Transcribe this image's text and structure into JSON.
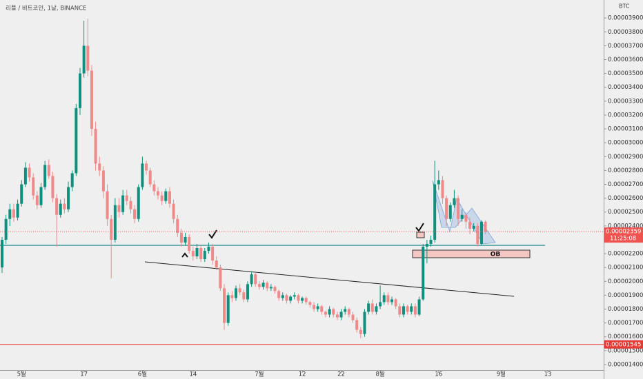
{
  "chart_data": {
    "type": "candlestick",
    "title": "리플 / 비트코인, 1날, BINANCE",
    "unit": "BTC",
    "up_color": "#0f8f7e",
    "down_color": "#ee8a8a",
    "xlim": [
      -0.53,
      154.33
    ],
    "ylim": [
      1.36e-05,
      4.03e-05
    ],
    "xticks": [
      {
        "value": 5,
        "label": "5월"
      },
      {
        "value": 21,
        "label": "17"
      },
      {
        "value": 36,
        "label": "6월"
      },
      {
        "value": 49,
        "label": "14"
      },
      {
        "value": 66,
        "label": "7월"
      },
      {
        "value": 77,
        "label": "12"
      },
      {
        "value": 87,
        "label": "22"
      },
      {
        "value": 97,
        "label": "8월"
      },
      {
        "value": 112,
        "label": "16"
      },
      {
        "value": 128,
        "label": "9월"
      },
      {
        "value": 140,
        "label": "13"
      }
    ],
    "yticks": [
      {
        "value": 1.4e-05,
        "label": "0.00001400"
      },
      {
        "value": 1.5e-05,
        "label": "0.00001500"
      },
      {
        "value": 1.6e-05,
        "label": "0.00001600"
      },
      {
        "value": 1.7e-05,
        "label": "0.00001700"
      },
      {
        "value": 1.8e-05,
        "label": "0.00001800"
      },
      {
        "value": 1.9e-05,
        "label": "0.00001900"
      },
      {
        "value": 2e-05,
        "label": "0.00002000"
      },
      {
        "value": 2.1e-05,
        "label": "0.00002100"
      },
      {
        "value": 2.2e-05,
        "label": "0.00002200"
      },
      {
        "value": 2.3e-05,
        "label": "0.00002300"
      },
      {
        "value": 2.4e-05,
        "label": "0.00002400"
      },
      {
        "value": 2.5e-05,
        "label": "0.00002500"
      },
      {
        "value": 2.6e-05,
        "label": "0.00002600"
      },
      {
        "value": 2.7e-05,
        "label": "0.00002700"
      },
      {
        "value": 2.8e-05,
        "label": "0.00002800"
      },
      {
        "value": 2.9e-05,
        "label": "0.00002900"
      },
      {
        "value": 3e-05,
        "label": "0.00003000"
      },
      {
        "value": 3.1e-05,
        "label": "0.00003100"
      },
      {
        "value": 3.2e-05,
        "label": "0.00003200"
      },
      {
        "value": 3.3e-05,
        "label": "0.00003300"
      },
      {
        "value": 3.4e-05,
        "label": "0.00003400"
      },
      {
        "value": 3.5e-05,
        "label": "0.00003500"
      },
      {
        "value": 3.6e-05,
        "label": "0.00003600"
      },
      {
        "value": 3.7e-05,
        "label": "0.00003700"
      },
      {
        "value": 3.8e-05,
        "label": "0.00003800"
      },
      {
        "value": 3.9e-05,
        "label": "0.00003900"
      }
    ],
    "level": 2.26e-05,
    "support_level": 1.545e-05,
    "last_price": 2.359e-05,
    "countdown": "11:25:08",
    "ob_label": "OB",
    "ohlc": [
      [
        2.1e-05,
        2.32e-05,
        2.06e-05,
        2.3e-05
      ],
      [
        2.3e-05,
        2.48e-05,
        2.27e-05,
        2.45e-05
      ],
      [
        2.45e-05,
        2.56e-05,
        2.4e-05,
        2.52e-05
      ],
      [
        2.52e-05,
        2.56e-05,
        2.43e-05,
        2.46e-05
      ],
      [
        2.46e-05,
        2.59e-05,
        2.44e-05,
        2.56e-05
      ],
      [
        2.56e-05,
        2.73e-05,
        2.54e-05,
        2.7e-05
      ],
      [
        2.7e-05,
        2.86e-05,
        2.68e-05,
        2.82e-05
      ],
      [
        2.82e-05,
        2.85e-05,
        2.72e-05,
        2.75e-05
      ],
      [
        2.75e-05,
        2.78e-05,
        2.59e-05,
        2.62e-05
      ],
      [
        2.62e-05,
        2.65e-05,
        2.52e-05,
        2.55e-05
      ],
      [
        2.55e-05,
        2.71e-05,
        2.53e-05,
        2.68e-05
      ],
      [
        2.68e-05,
        2.87e-05,
        2.66e-05,
        2.84e-05
      ],
      [
        2.84e-05,
        2.88e-05,
        2.74e-05,
        2.76e-05
      ],
      [
        2.76e-05,
        2.79e-05,
        2.57e-05,
        2.6e-05
      ],
      [
        2.6e-05,
        2.63e-05,
        2.25e-05,
        2.48e-05
      ],
      [
        2.48e-05,
        2.59e-05,
        2.46e-05,
        2.56e-05
      ],
      [
        2.56e-05,
        2.6e-05,
        2.49e-05,
        2.52e-05
      ],
      [
        2.52e-05,
        2.72e-05,
        2.5e-05,
        2.68e-05
      ],
      [
        2.68e-05,
        2.8e-05,
        2.65e-05,
        2.78e-05
      ],
      [
        2.78e-05,
        3.28e-05,
        2.76e-05,
        3.25e-05
      ],
      [
        3.25e-05,
        3.54e-05,
        3.2e-05,
        3.5e-05
      ],
      [
        3.5e-05,
        3.88e-05,
        3.47e-05,
        3.7e-05
      ],
      [
        3.7e-05,
        3.895e-05,
        3.48e-05,
        3.52e-05
      ],
      [
        3.52e-05,
        3.56e-05,
        3.05e-05,
        3.1e-05
      ],
      [
        3.1e-05,
        3.15e-05,
        2.8e-05,
        2.85e-05
      ],
      [
        2.85e-05,
        2.9e-05,
        2.76e-05,
        2.8e-05
      ],
      [
        2.8e-05,
        2.83e-05,
        2.6e-05,
        2.65e-05
      ],
      [
        2.65e-05,
        2.7e-05,
        2.4e-05,
        2.45e-05
      ],
      [
        2.45e-05,
        2.48e-05,
        2.02e-05,
        2.3e-05
      ],
      [
        2.3e-05,
        2.6e-05,
        2.28e-05,
        2.55e-05
      ],
      [
        2.55e-05,
        2.6e-05,
        2.46e-05,
        2.5e-05
      ],
      [
        2.5e-05,
        2.66e-05,
        2.48e-05,
        2.62e-05
      ],
      [
        2.62e-05,
        2.66e-05,
        2.55e-05,
        2.58e-05
      ],
      [
        2.58e-05,
        2.61e-05,
        2.49e-05,
        2.52e-05
      ],
      [
        2.52e-05,
        2.55e-05,
        2.42e-05,
        2.45e-05
      ],
      [
        2.45e-05,
        2.7e-05,
        2.43e-05,
        2.68e-05
      ],
      [
        2.68e-05,
        2.9e-05,
        2.66e-05,
        2.85e-05
      ],
      [
        2.85e-05,
        2.87e-05,
        2.77e-05,
        2.8e-05
      ],
      [
        2.8e-05,
        2.82e-05,
        2.68e-05,
        2.7e-05
      ],
      [
        2.7e-05,
        2.73e-05,
        2.62e-05,
        2.65e-05
      ],
      [
        2.65e-05,
        2.68e-05,
        2.59e-05,
        2.62e-05
      ],
      [
        2.62e-05,
        2.65e-05,
        2.55e-05,
        2.58e-05
      ],
      [
        2.58e-05,
        2.67e-05,
        2.56e-05,
        2.65e-05
      ],
      [
        2.65e-05,
        2.68e-05,
        2.53e-05,
        2.56e-05
      ],
      [
        2.56e-05,
        2.59e-05,
        2.42e-05,
        2.45e-05
      ],
      [
        2.45e-05,
        2.48e-05,
        2.32e-05,
        2.35e-05
      ],
      [
        2.35e-05,
        2.38e-05,
        2.25e-05,
        2.28e-05
      ],
      [
        2.28e-05,
        2.35e-05,
        2.26e-05,
        2.32e-05
      ],
      [
        2.32e-05,
        2.34e-05,
        2.2e-05,
        2.22e-05
      ],
      [
        2.22e-05,
        2.25e-05,
        2.15e-05,
        2.18e-05
      ],
      [
        2.18e-05,
        2.27e-05,
        2.16e-05,
        2.24e-05
      ],
      [
        2.24e-05,
        2.26e-05,
        2.14e-05,
        2.16e-05
      ],
      [
        2.16e-05,
        2.24e-05,
        2.14e-05,
        2.22e-05
      ],
      [
        2.22e-05,
        2.28e-05,
        2.2e-05,
        2.25e-05
      ],
      [
        2.25e-05,
        2.27e-05,
        2.12e-05,
        2.15e-05
      ],
      [
        2.15e-05,
        2.18e-05,
        2.08e-05,
        2.1e-05
      ],
      [
        2.1e-05,
        2.12e-05,
        1.93e-05,
        1.95e-05
      ],
      [
        1.95e-05,
        1.98e-05,
        1.65e-05,
        1.7e-05
      ],
      [
        1.7e-05,
        1.92e-05,
        1.68e-05,
        1.9e-05
      ],
      [
        1.9e-05,
        1.93e-05,
        1.85e-05,
        1.88e-05
      ],
      [
        1.88e-05,
        1.97e-05,
        1.86e-05,
        1.95e-05
      ],
      [
        1.95e-05,
        1.98e-05,
        1.9e-05,
        1.92e-05
      ],
      [
        1.92e-05,
        1.94e-05,
        1.85e-05,
        1.87e-05
      ],
      [
        1.87e-05,
        2e-05,
        1.85e-05,
        1.98e-05
      ],
      [
        1.98e-05,
        2.07e-05,
        1.96e-05,
        2.05e-05
      ],
      [
        2.05e-05,
        2.06e-05,
        1.96e-05,
        1.98e-05
      ],
      [
        1.98e-05,
        2e-05,
        1.94e-05,
        1.96e-05
      ],
      [
        1.96e-05,
        2.01e-05,
        1.94e-05,
        1.99e-05
      ],
      [
        1.99e-05,
        2e-05,
        1.93e-05,
        1.95e-05
      ],
      [
        1.95e-05,
        1.98e-05,
        1.93e-05,
        1.96e-05
      ],
      [
        1.96e-05,
        1.97e-05,
        1.91e-05,
        1.93e-05
      ],
      [
        1.93e-05,
        1.94e-05,
        1.86e-05,
        1.88e-05
      ],
      [
        1.88e-05,
        1.92e-05,
        1.86e-05,
        1.9e-05
      ],
      [
        1.9e-05,
        1.91e-05,
        1.84e-05,
        1.86e-05
      ],
      [
        1.86e-05,
        1.9e-05,
        1.84e-05,
        1.89e-05
      ],
      [
        1.89e-05,
        1.92e-05,
        1.87e-05,
        1.9e-05
      ],
      [
        1.9e-05,
        1.91e-05,
        1.84e-05,
        1.86e-05
      ],
      [
        1.86e-05,
        1.89e-05,
        1.84e-05,
        1.88e-05
      ],
      [
        1.88e-05,
        1.89e-05,
        1.83e-05,
        1.85e-05
      ],
      [
        1.85e-05,
        1.86e-05,
        1.81e-05,
        1.83e-05
      ],
      [
        1.83e-05,
        1.85e-05,
        1.78e-05,
        1.8e-05
      ],
      [
        1.8e-05,
        1.84e-05,
        1.78e-05,
        1.82e-05
      ],
      [
        1.82e-05,
        1.83e-05,
        1.76e-05,
        1.78e-05
      ],
      [
        1.78e-05,
        1.79e-05,
        1.74e-05,
        1.76e-05
      ],
      [
        1.76e-05,
        1.82e-05,
        1.74e-05,
        1.8e-05
      ],
      [
        1.8e-05,
        1.81e-05,
        1.74e-05,
        1.76e-05
      ],
      [
        1.76e-05,
        1.78e-05,
        1.72e-05,
        1.74e-05
      ],
      [
        1.74e-05,
        1.8e-05,
        1.72e-05,
        1.78e-05
      ],
      [
        1.78e-05,
        1.82e-05,
        1.76e-05,
        1.8e-05
      ],
      [
        1.8e-05,
        1.81e-05,
        1.74e-05,
        1.76e-05
      ],
      [
        1.76e-05,
        1.78e-05,
        1.7e-05,
        1.72e-05
      ],
      [
        1.72e-05,
        1.74e-05,
        1.63e-05,
        1.65e-05
      ],
      [
        1.65e-05,
        1.67e-05,
        1.59e-05,
        1.62e-05
      ],
      [
        1.62e-05,
        1.8e-05,
        1.6e-05,
        1.78e-05
      ],
      [
        1.78e-05,
        1.86e-05,
        1.76e-05,
        1.84e-05
      ],
      [
        1.84e-05,
        1.87e-05,
        1.76e-05,
        1.78e-05
      ],
      [
        1.78e-05,
        1.84e-05,
        1.76e-05,
        1.82e-05
      ],
      [
        1.82e-05,
        1.97e-05,
        1.8e-05,
        1.85e-05
      ],
      [
        1.85e-05,
        1.92e-05,
        1.83e-05,
        1.9e-05
      ],
      [
        1.9e-05,
        1.92e-05,
        1.83e-05,
        1.85e-05
      ],
      [
        1.85e-05,
        1.89e-05,
        1.83e-05,
        1.87e-05
      ],
      [
        1.87e-05,
        1.88e-05,
        1.8e-05,
        1.82e-05
      ],
      [
        1.82e-05,
        1.84e-05,
        1.74e-05,
        1.76e-05
      ],
      [
        1.76e-05,
        1.84e-05,
        1.74e-05,
        1.82e-05
      ],
      [
        1.82e-05,
        1.83e-05,
        1.76e-05,
        1.78e-05
      ],
      [
        1.78e-05,
        1.84e-05,
        1.76e-05,
        1.82e-05
      ],
      [
        1.82e-05,
        1.84e-05,
        1.74e-05,
        1.76e-05
      ],
      [
        1.76e-05,
        1.89e-05,
        1.75e-05,
        1.87e-05
      ],
      [
        1.87e-05,
        2.27e-05,
        1.86e-05,
        2.25e-05
      ],
      [
        2.25e-05,
        2.3e-05,
        2.13e-05,
        2.27e-05
      ],
      [
        2.27e-05,
        2.33e-05,
        2.25e-05,
        2.3e-05
      ],
      [
        2.3e-05,
        2.87e-05,
        2.28e-05,
        2.7e-05
      ],
      [
        2.7e-05,
        2.8e-05,
        2.66e-05,
        2.73e-05
      ],
      [
        2.73e-05,
        2.76e-05,
        2.56e-05,
        2.6e-05
      ],
      [
        2.6e-05,
        2.62e-05,
        2.4e-05,
        2.45e-05
      ],
      [
        2.45e-05,
        2.57e-05,
        2.43e-05,
        2.55e-05
      ],
      [
        2.55e-05,
        2.66e-05,
        2.53e-05,
        2.6e-05
      ],
      [
        2.6e-05,
        2.62e-05,
        2.4e-05,
        2.45e-05
      ],
      [
        2.45e-05,
        2.52e-05,
        2.43e-05,
        2.48e-05
      ],
      [
        2.48e-05,
        2.5e-05,
        2.38e-05,
        2.43e-05
      ],
      [
        2.43e-05,
        2.46e-05,
        2.34e-05,
        2.38e-05
      ],
      [
        2.38e-05,
        2.42e-05,
        2.36e-05,
        2.4e-05
      ],
      [
        2.4e-05,
        2.42e-05,
        2.25e-05,
        2.27e-05
      ],
      [
        2.27e-05,
        2.44e-05,
        2.26e-05,
        2.43e-05
      ],
      [
        2.43e-05,
        2.44e-05,
        2.34e-05,
        2.359e-05
      ]
    ]
  }
}
